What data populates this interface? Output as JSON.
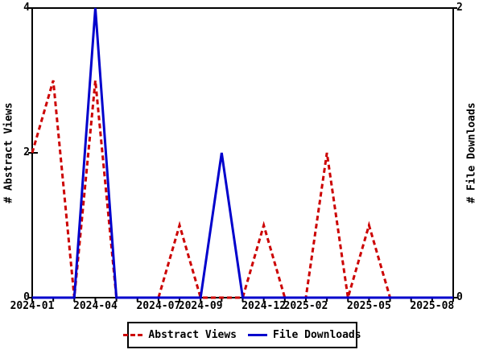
{
  "figure": {
    "background": "#ffffff",
    "frame_color": "#000000",
    "text_color": "#000000"
  },
  "chart_data": {
    "type": "line",
    "title": "",
    "grid": false,
    "x": [
      "2024-01",
      "2024-02",
      "2024-03",
      "2024-04",
      "2024-05",
      "2024-06",
      "2024-07",
      "2024-08",
      "2024-09",
      "2024-10",
      "2024-11",
      "2024-12",
      "2025-01",
      "2025-02",
      "2025-03",
      "2025-04",
      "2025-05",
      "2025-06",
      "2025-07",
      "2025-08",
      "2025-09"
    ],
    "x_tick_labels_shown": [
      "2024-01",
      "2024-04",
      "2024-07",
      "2024-09",
      "2024-12",
      "2025-02",
      "2025-05",
      "2025-08"
    ],
    "left_axis": {
      "label": "# Abstract Views",
      "range": [
        0,
        4
      ],
      "ticks": [
        0,
        2,
        4
      ]
    },
    "right_axis": {
      "label": "# File Downloads",
      "range": [
        0,
        2
      ],
      "ticks": [
        0,
        2
      ]
    },
    "series": [
      {
        "name": "Abstract Views",
        "axis": "left",
        "color": "#cc0000",
        "style": "dashed",
        "values": [
          2,
          3,
          0,
          3,
          0,
          0,
          0,
          1,
          0,
          0,
          0,
          1,
          0,
          0,
          2,
          0,
          1,
          0,
          0,
          0,
          0
        ]
      },
      {
        "name": "File Downloads",
        "axis": "right",
        "color": "#0000cc",
        "style": "solid",
        "values": [
          0,
          0,
          0,
          2,
          0,
          0,
          0,
          0,
          0,
          1,
          0,
          0,
          0,
          0,
          0,
          0,
          0,
          0,
          0,
          0,
          0
        ]
      }
    ],
    "legend": {
      "position": "bottom-center",
      "entries": [
        "Abstract Views",
        "File Downloads"
      ]
    }
  }
}
